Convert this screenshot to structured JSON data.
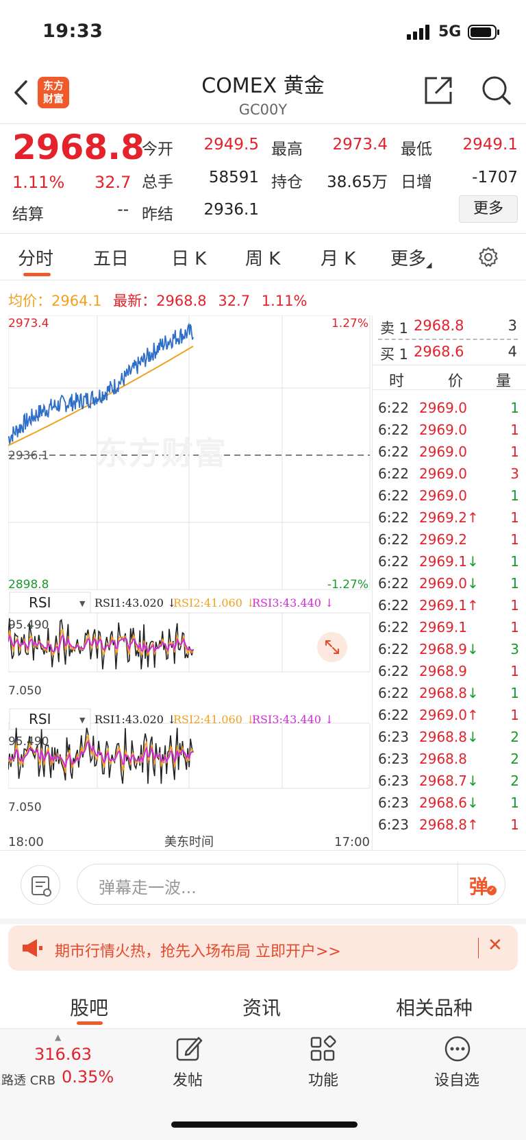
{
  "status_bar": {
    "time": "19:33",
    "network": "5G"
  },
  "header": {
    "logo_text": "东方\n财富",
    "title": "COMEX 黄金",
    "code": "GC00Y"
  },
  "quote": {
    "price": "2968.8",
    "change_pct": "1.11%",
    "change": "32.7",
    "open_label": "今开",
    "open": "2949.5",
    "high_label": "最高",
    "high": "2973.4",
    "low_label": "最低",
    "low": "2949.1",
    "volume_label": "总手",
    "volume": "58591",
    "oi_label": "持仓",
    "oi": "38.65万",
    "daily_inc_label": "日增",
    "daily_inc": "-1707",
    "settle_label": "结算",
    "settle": "--",
    "prev_settle_label": "昨结",
    "prev_settle": "2936.1",
    "more_button": "更多"
  },
  "chart_tabs": [
    "分时",
    "五日",
    "日 K",
    "周 K",
    "月 K",
    "更多"
  ],
  "info_line": {
    "avg_label": "均价：",
    "avg": "2964.1",
    "latest_label": "最新：",
    "latest": "2968.8",
    "change": "32.7",
    "pct": "1.11%"
  },
  "chart_data": {
    "type": "line",
    "price_chart": {
      "y_max_label": "2973.4",
      "y_min_label": "2898.8",
      "ref_label": "2936.1",
      "pct_max_label": "1.27%",
      "pct_min_label": "-1.27%",
      "ylim": [
        2898.8,
        2973.4
      ],
      "reference": 2936.1,
      "series": [
        {
          "name": "",
          "color": "#2f6ec8"
        },
        {
          "name": "",
          "color": "#f0a11e"
        }
      ]
    },
    "indicator_panels": [
      {
        "selector": "RSI",
        "rsi1": "RSI1:43.020 ↓",
        "rsi2": "RSI2:41.060 ↓",
        "rsi3": "RSI3:43.440 ↓",
        "max_label": "95.490",
        "min_label": "7.050"
      },
      {
        "selector": "RSI",
        "rsi1": "RSI1:43.020 ↓",
        "rsi2": "RSI2:41.060 ↓",
        "rsi3": "RSI3:43.440 ↓",
        "max_label": "95.490",
        "min_label": "7.050"
      }
    ],
    "x_start": "18:00",
    "x_mid": "美东时间",
    "x_end": "17:00"
  },
  "order_book": {
    "sell": {
      "label": "卖 1",
      "price": "2968.8",
      "qty": "3"
    },
    "buy": {
      "label": "买 1",
      "price": "2968.6",
      "qty": "4"
    },
    "headers": [
      "时",
      "价",
      "量"
    ]
  },
  "trades": [
    {
      "time": "6:22",
      "price": "2969.0",
      "arrow": "",
      "qty": "1",
      "color": "green"
    },
    {
      "time": "6:22",
      "price": "2969.0",
      "arrow": "",
      "qty": "1",
      "color": "red"
    },
    {
      "time": "6:22",
      "price": "2969.0",
      "arrow": "",
      "qty": "1",
      "color": "red"
    },
    {
      "time": "6:22",
      "price": "2969.0",
      "arrow": "",
      "qty": "3",
      "color": "red"
    },
    {
      "time": "6:22",
      "price": "2969.0",
      "arrow": "",
      "qty": "1",
      "color": "green"
    },
    {
      "time": "6:22",
      "price": "2969.2",
      "arrow": "↑",
      "qty": "1",
      "color": "red"
    },
    {
      "time": "6:22",
      "price": "2969.2",
      "arrow": "",
      "qty": "1",
      "color": "red"
    },
    {
      "time": "6:22",
      "price": "2969.1",
      "arrow": "↓",
      "qty": "1",
      "color": "green"
    },
    {
      "time": "6:22",
      "price": "2969.0",
      "arrow": "↓",
      "qty": "1",
      "color": "green"
    },
    {
      "time": "6:22",
      "price": "2969.1",
      "arrow": "↑",
      "qty": "1",
      "color": "red"
    },
    {
      "time": "6:22",
      "price": "2969.1",
      "arrow": "",
      "qty": "1",
      "color": "red"
    },
    {
      "time": "6:22",
      "price": "2968.9",
      "arrow": "↓",
      "qty": "3",
      "color": "green"
    },
    {
      "time": "6:22",
      "price": "2968.9",
      "arrow": "",
      "qty": "1",
      "color": "red"
    },
    {
      "time": "6:22",
      "price": "2968.8",
      "arrow": "↓",
      "qty": "1",
      "color": "green"
    },
    {
      "time": "6:22",
      "price": "2969.0",
      "arrow": "↑",
      "qty": "1",
      "color": "red"
    },
    {
      "time": "6:23",
      "price": "2968.8",
      "arrow": "↓",
      "qty": "2",
      "color": "green"
    },
    {
      "time": "6:23",
      "price": "2968.8",
      "arrow": "",
      "qty": "2",
      "color": "green"
    },
    {
      "time": "6:23",
      "price": "2968.7",
      "arrow": "↓",
      "qty": "2",
      "color": "green"
    },
    {
      "time": "6:23",
      "price": "2968.6",
      "arrow": "↓",
      "qty": "1",
      "color": "green"
    },
    {
      "time": "6:23",
      "price": "2968.8",
      "arrow": "↑",
      "qty": "1",
      "color": "red"
    }
  ],
  "comment_bar": {
    "placeholder": "弹幕走一波...",
    "danmu_label": "弹"
  },
  "promo": {
    "text": "期市行情火热，抢先入场布局 立即开户>>"
  },
  "bottom_tabs": [
    "股吧",
    "资讯",
    "相关品种"
  ],
  "bottom_nav": {
    "ticker_value": "316.63",
    "ticker_name": "路透 CRB",
    "ticker_pct": "0.35%",
    "items": [
      "发帖",
      "功能",
      "设自选"
    ]
  },
  "colors": {
    "up": "#e4222b",
    "down": "#1a9a2c",
    "brand": "#f05a2a",
    "avg_line": "#f0a11e",
    "price_line": "#2f6ec8"
  }
}
